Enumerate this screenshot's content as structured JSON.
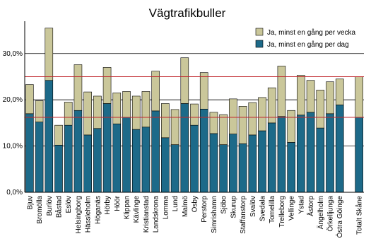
{
  "chart_data": {
    "type": "stacked_bar",
    "title": "Vägtrafikbuller",
    "categories": [
      "Bjuv",
      "Bromölla",
      "Burlöv",
      "Båstad",
      "Eslöv",
      "Helsingborg",
      "Hässleholm",
      "Höganäs",
      "Hörby",
      "Höör",
      "Klippan",
      "Kävlinge",
      "Kristianstad",
      "Landskrona",
      "Lomma",
      "Lund",
      "Malmö",
      "Osby",
      "Perstorp",
      "Simrishamn",
      "Sjöbo",
      "Skurup",
      "Staffanstorp",
      "Svalöv",
      "Svedala",
      "Tomelilla",
      "Trelleborg",
      "Vellinge",
      "Ystad",
      "Åstorp",
      "Ängelholm",
      "Örkelljunga",
      "Östra Göinge",
      null,
      "Totalt Skåne"
    ],
    "series": [
      {
        "name": "Ja, minst en gång per dag",
        "color": "#1d6a89",
        "values": [
          17.0,
          15.2,
          24.2,
          10.2,
          14.5,
          17.7,
          12.4,
          13.8,
          19.2,
          14.8,
          16.2,
          13.6,
          14.1,
          17.6,
          11.8,
          10.3,
          19.2,
          14.5,
          18.0,
          12.7,
          10.3,
          12.6,
          10.5,
          12.4,
          13.3,
          15.0,
          16.4,
          10.8,
          16.7,
          17.3,
          13.9,
          17.0,
          18.9,
          null,
          16.2
        ]
      },
      {
        "name": "Ja, minst en gång per vecka",
        "color": "#cac79a",
        "values": [
          6.3,
          4.6,
          11.3,
          4.3,
          5.0,
          9.9,
          9.3,
          7.0,
          7.8,
          6.7,
          5.6,
          7.2,
          7.7,
          8.6,
          7.4,
          7.6,
          9.9,
          4.6,
          7.9,
          4.6,
          6.5,
          7.6,
          8.1,
          7.0,
          7.2,
          7.6,
          10.9,
          6.9,
          8.6,
          6.9,
          8.2,
          6.9,
          5.6,
          null,
          8.8
        ]
      }
    ],
    "ylim": [
      0,
      37
    ],
    "yticks": [
      {
        "value": 0,
        "label": "0,0%"
      },
      {
        "value": 10,
        "label": "10,0%"
      },
      {
        "value": 20,
        "label": "20,0%"
      },
      {
        "value": 30,
        "label": "30,0%"
      }
    ],
    "grid": true,
    "reference_lines": [
      {
        "value": 25,
        "color": "#c0282d"
      },
      {
        "value": 16.2,
        "color": "#c0282d"
      }
    ],
    "legend": "top-right"
  }
}
